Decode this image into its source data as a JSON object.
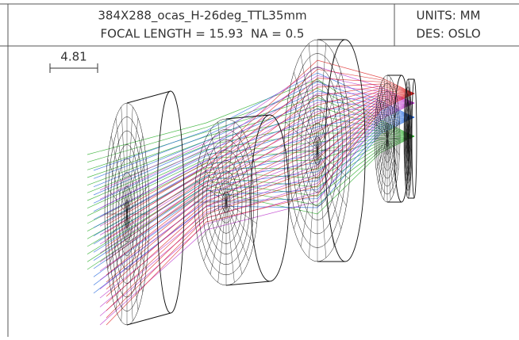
{
  "header": {
    "title": "384X288_ocas_H-26deg_TTL35mm",
    "subtitle": "FOCAL LENGTH = 15.93  NA = 0.5",
    "units": "UNITS: MM",
    "designer": "DES: OSLO"
  },
  "scale_bar": {
    "label": "4.81"
  }
}
